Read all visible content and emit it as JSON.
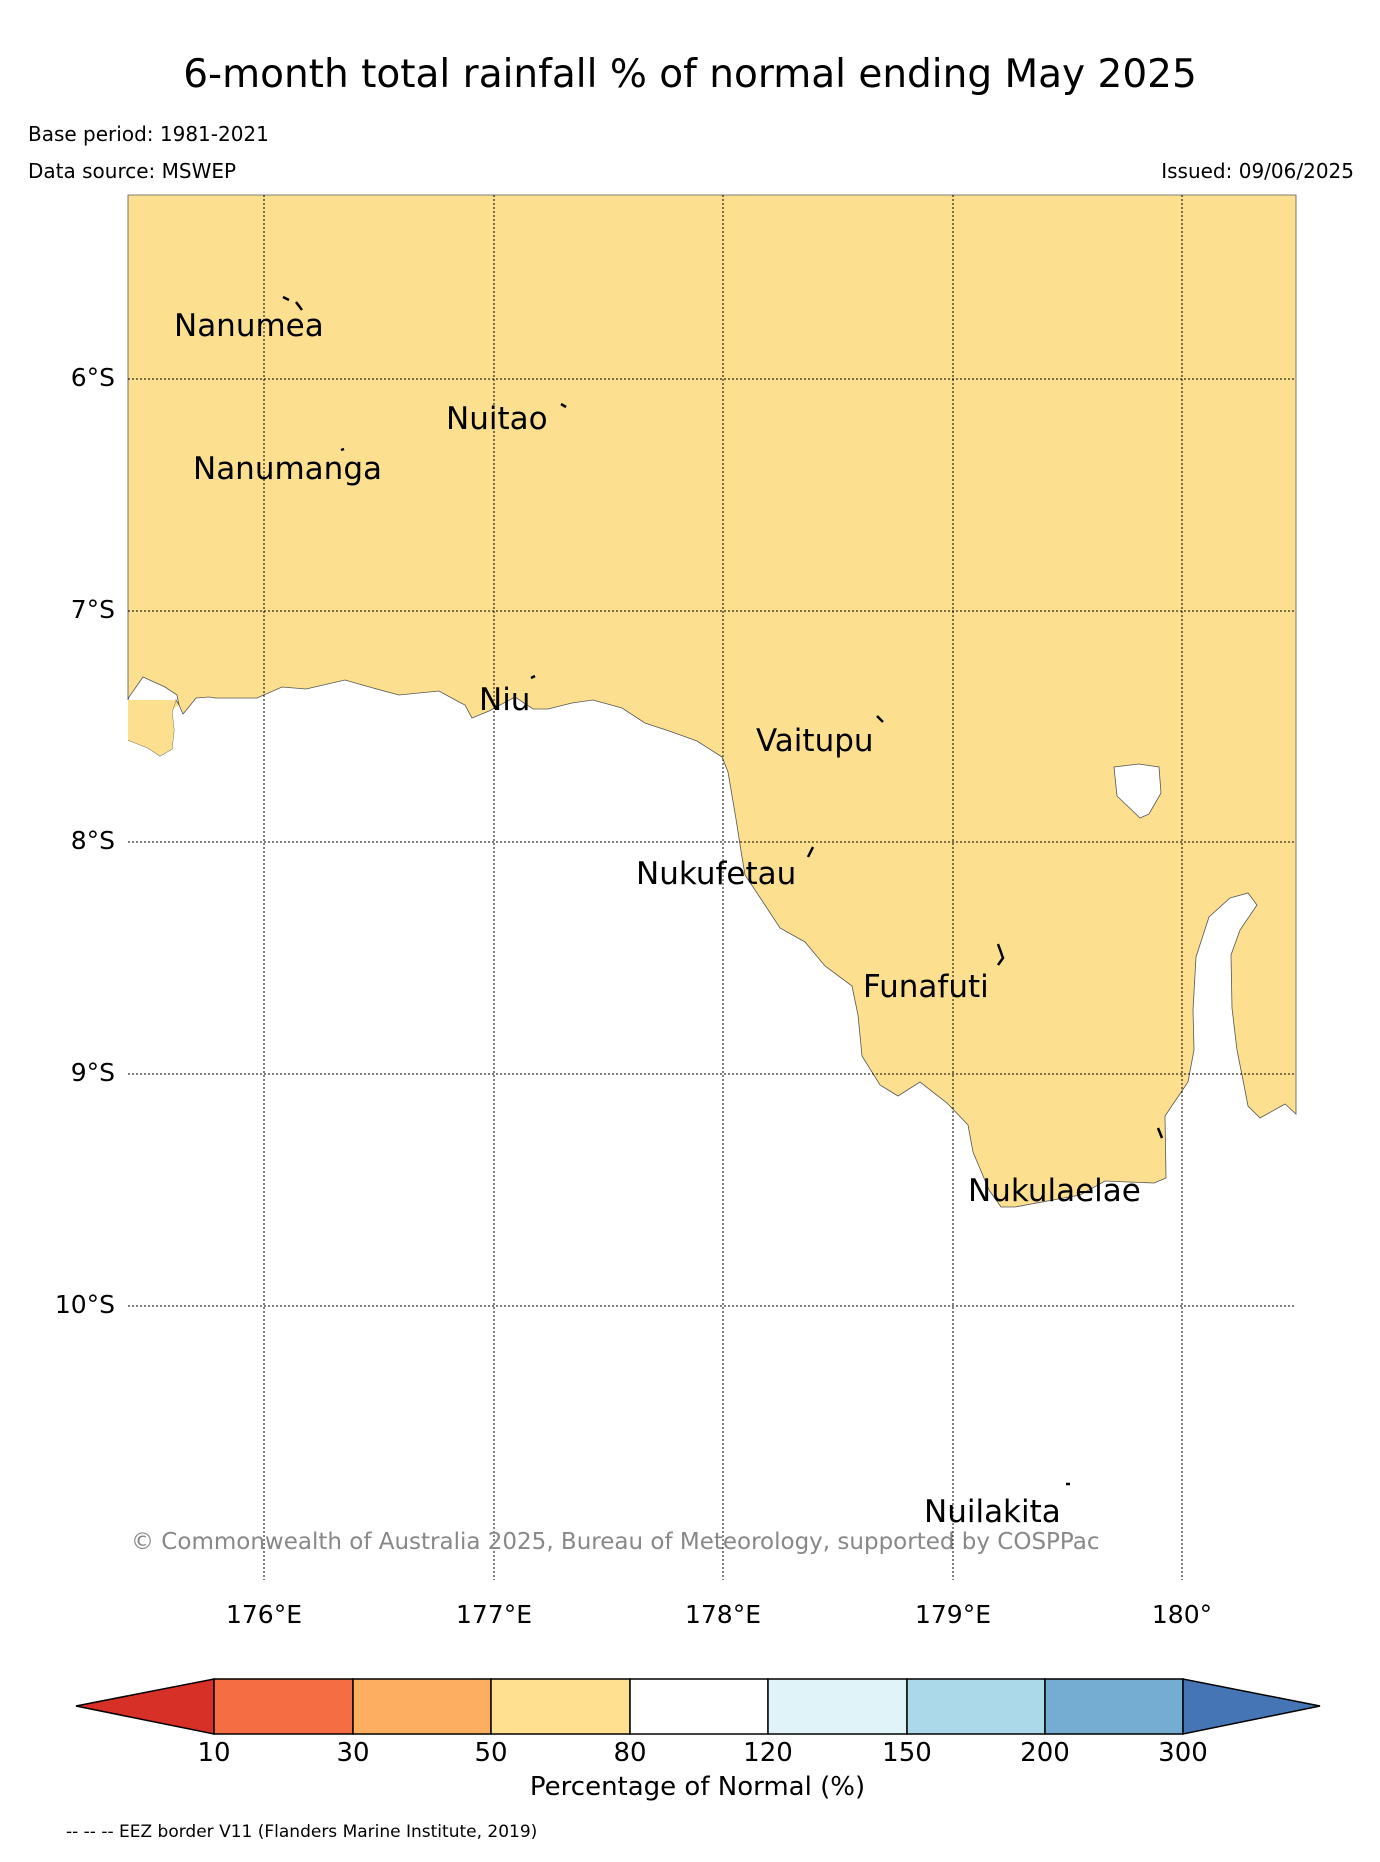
{
  "title": "6-month total rainfall % of normal ending May 2025",
  "base_period": "Base period: 1981-2021",
  "data_source": "Data source: MSWEP",
  "issued": "Issued: 09/06/2025",
  "copyright": "© Commonwealth of Australia 2025, Bureau of Meteorology, supported by COSPPac",
  "footnote": "-- -- -- EEZ border V11 (Flanders Marine Institute, 2019)",
  "colors": {
    "fill_50_80": "#fde08f",
    "land_outline": "#000000"
  },
  "lat_labels": [
    "6°S",
    "7°S",
    "8°S",
    "9°S",
    "10°S"
  ],
  "lon_labels": [
    "176°E",
    "177°E",
    "178°E",
    "179°E",
    "180°"
  ],
  "islands": [
    "Nanumea",
    "Nuitao",
    "Nanumanga",
    "Niu",
    "Vaitupu",
    "Nukufetau",
    "Funafuti",
    "Nukulaelae",
    "Nuilakita"
  ],
  "colorbar": {
    "title": "Percentage of Normal (%)",
    "ticks": [
      "10",
      "30",
      "50",
      "80",
      "120",
      "150",
      "200",
      "300"
    ],
    "colors": [
      "#d73027",
      "#f46d43",
      "#fdae61",
      "#fee090",
      "#ffffff",
      "#e0f3f8",
      "#abd9e9",
      "#74add1",
      "#4575b4"
    ]
  }
}
